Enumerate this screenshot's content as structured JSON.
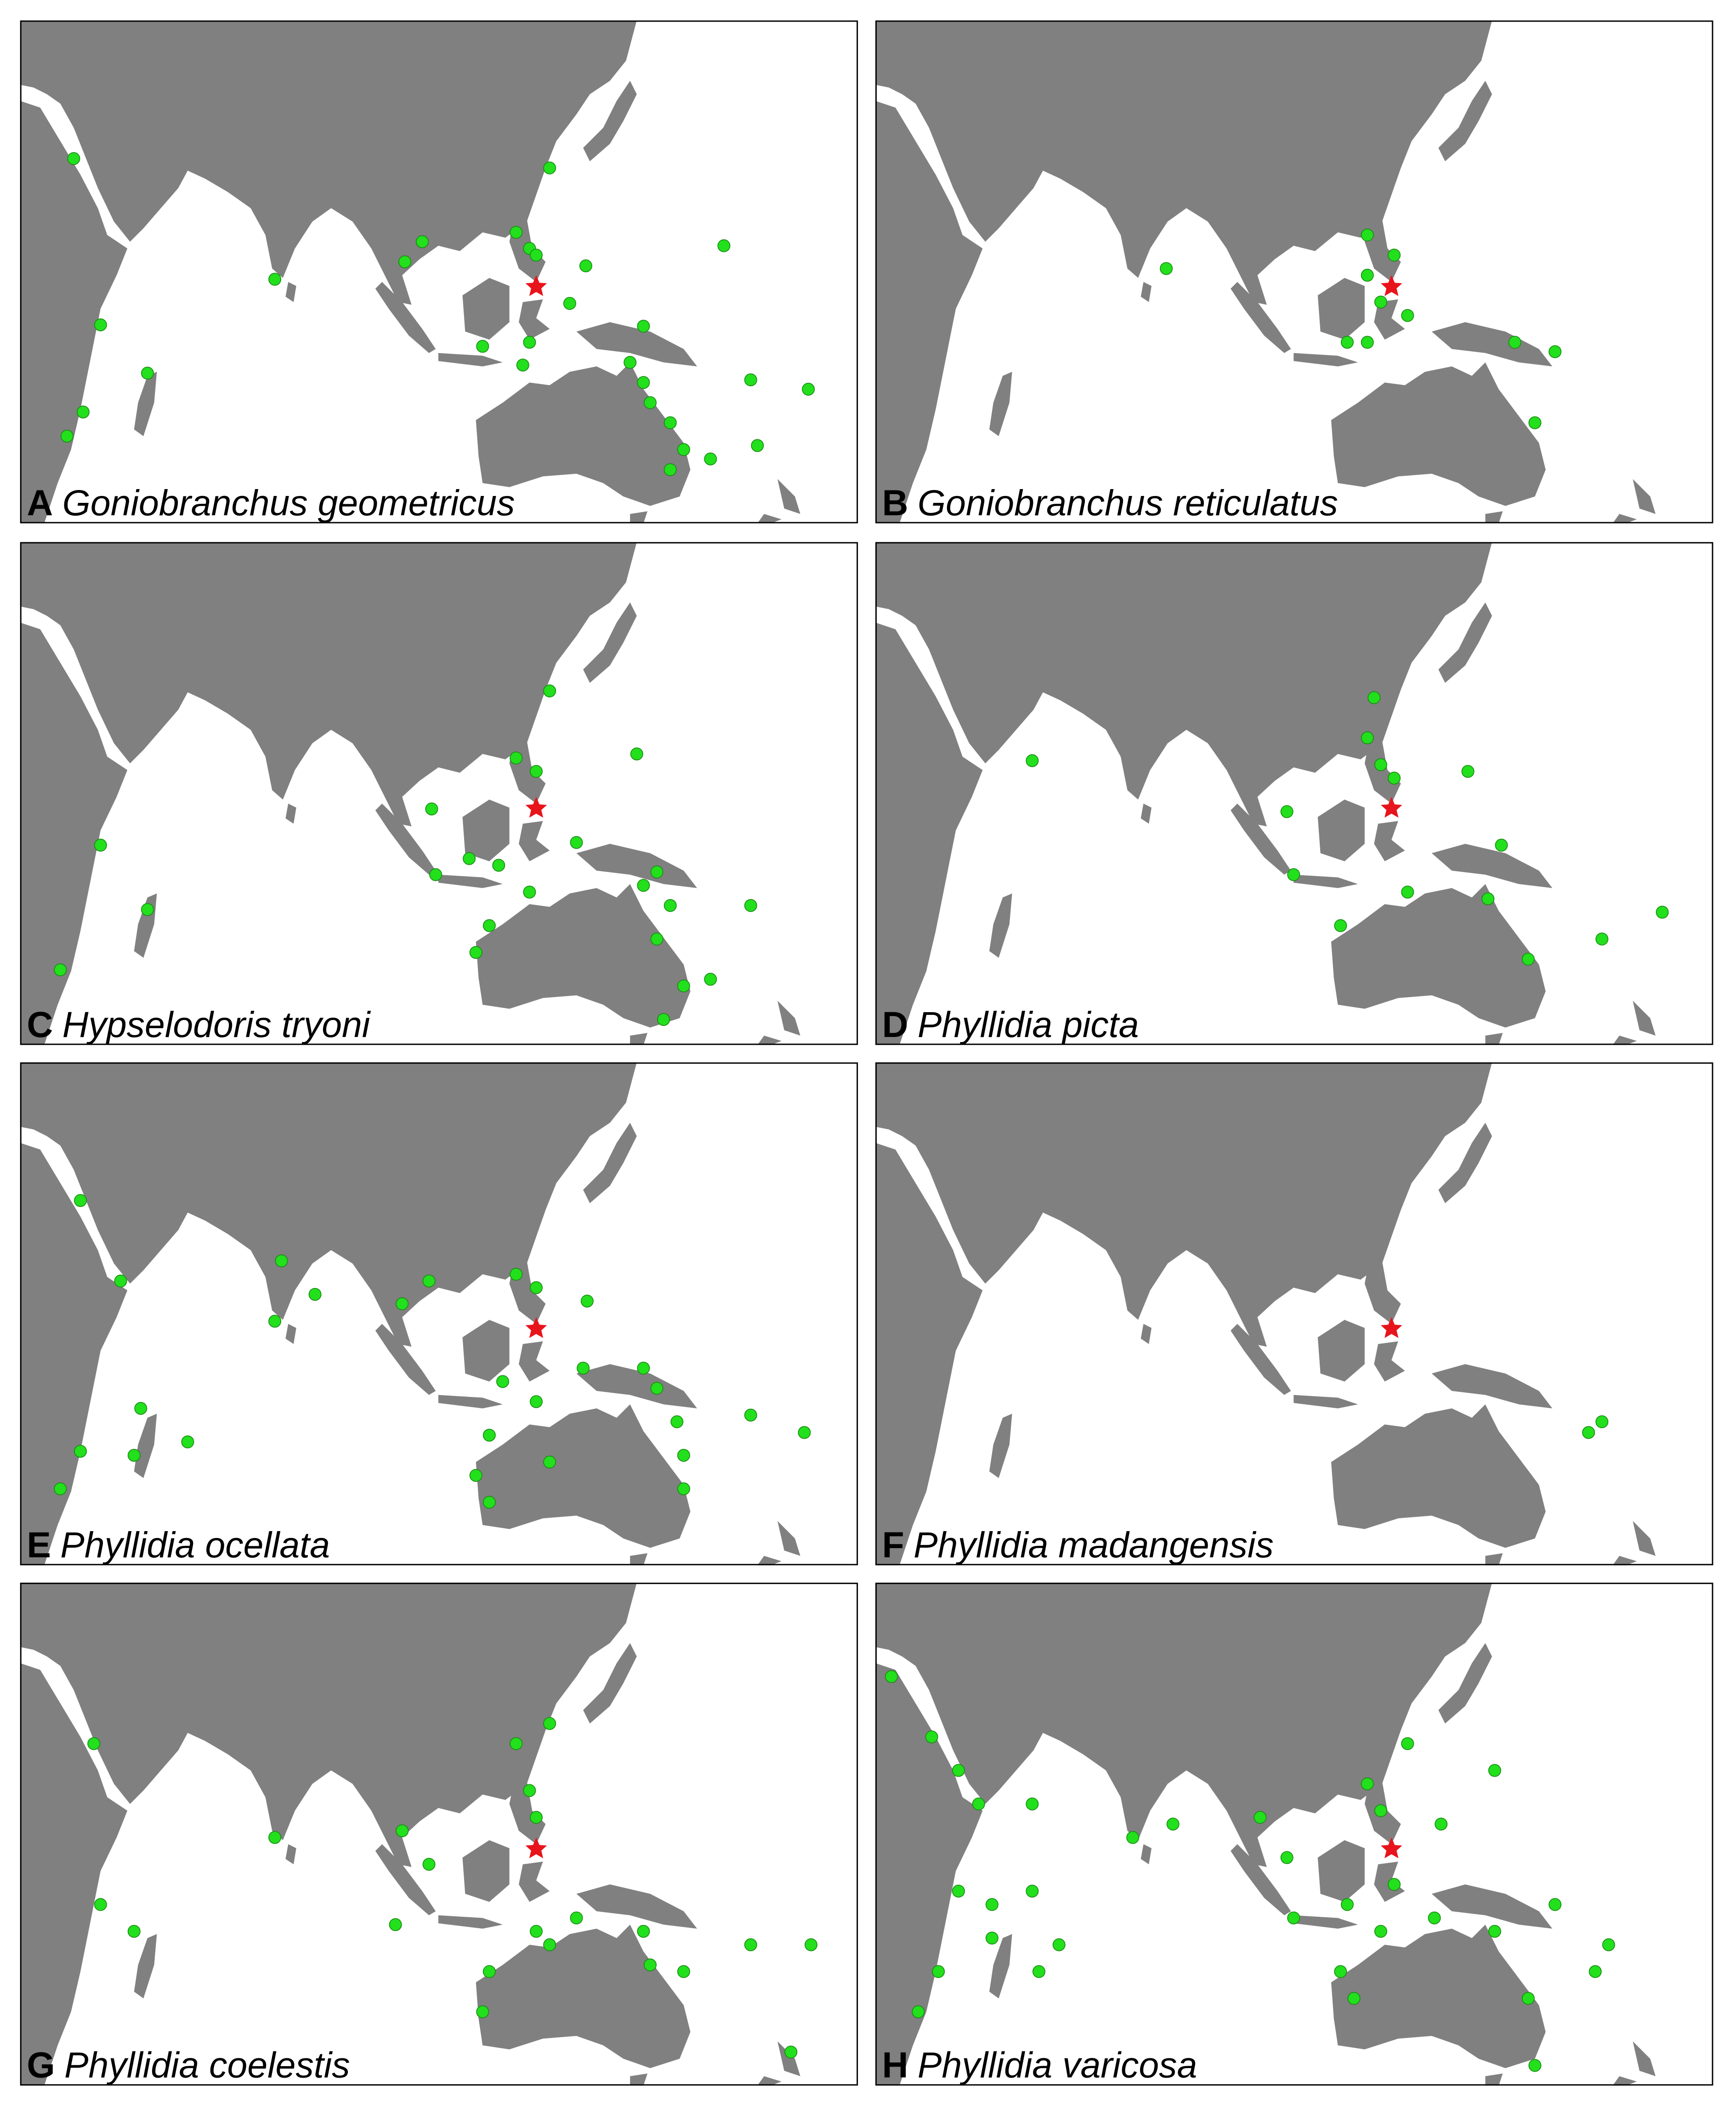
{
  "panels": [
    {
      "letter": "A",
      "species": "Goniobranchus geometricus"
    },
    {
      "letter": "B",
      "species": "Goniobranchus reticulatus"
    },
    {
      "letter": "C",
      "species": "Hypselodoris tryoni"
    },
    {
      "letter": "D",
      "species": "Phyllidia picta"
    },
    {
      "letter": "E",
      "species": "Phyllidia ocellata"
    },
    {
      "letter": "F",
      "species": "Phyllidia madangensis"
    },
    {
      "letter": "G",
      "species": "Phyllidia coelestis"
    },
    {
      "letter": "H",
      "species": "Phyllidia varicosa"
    }
  ]
}
